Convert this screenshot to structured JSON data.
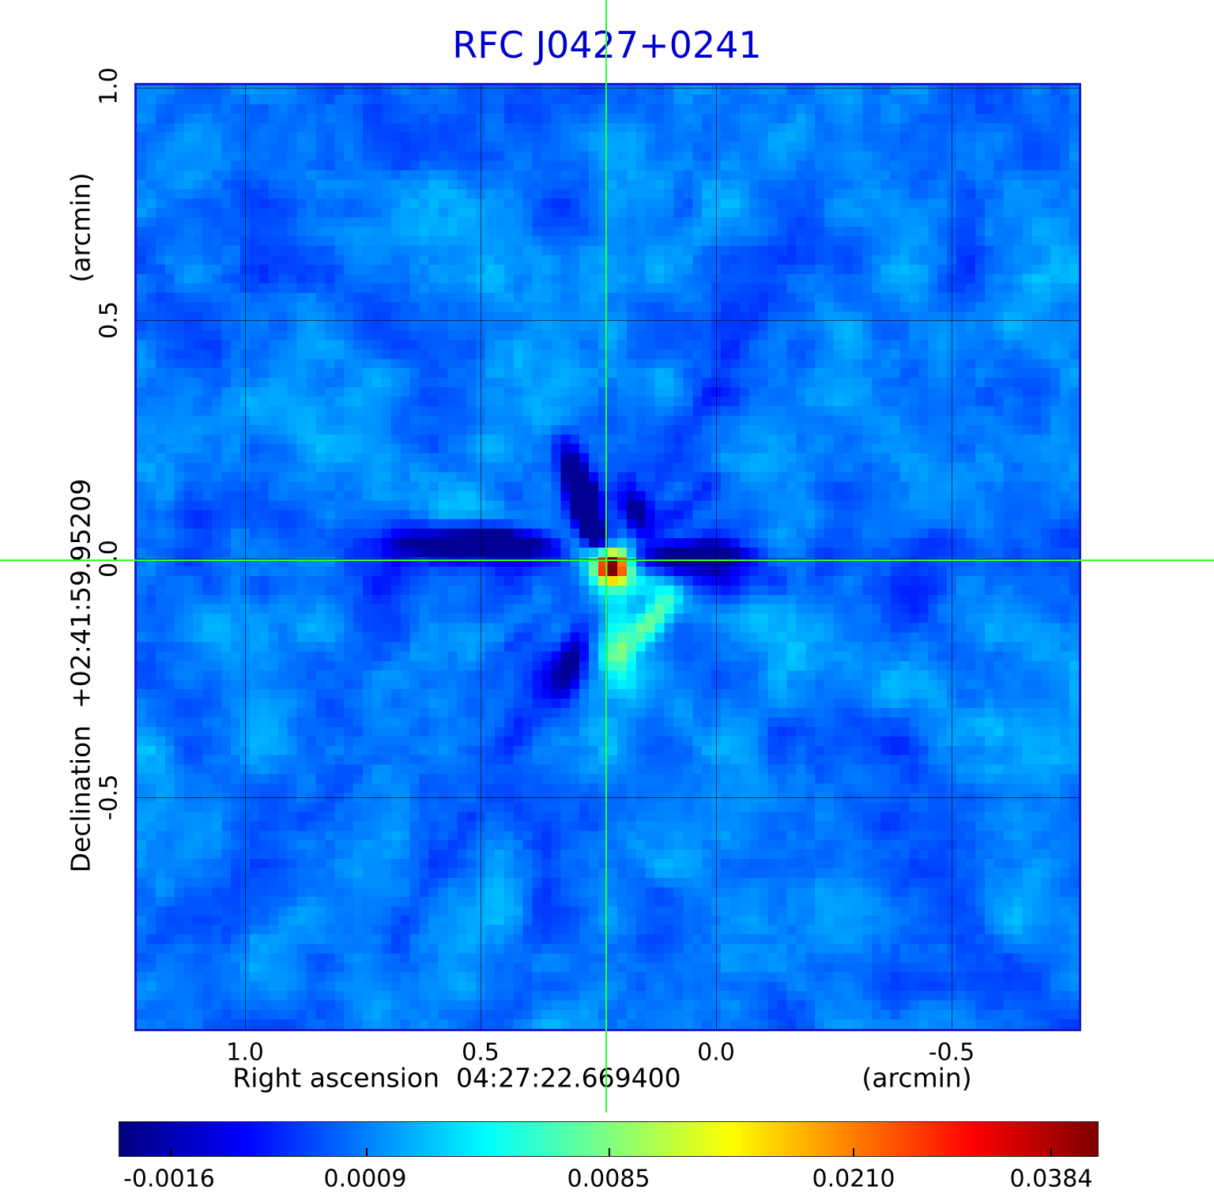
{
  "title": {
    "text": "RFC J0427+0241"
  },
  "colors": {
    "title": "#0000cd",
    "crosshair": "#2dff2d",
    "grid": "#000000",
    "frame": "#1a1acc"
  },
  "axes": {
    "y": {
      "label": "Declination  +02:41:59.95209",
      "unit": "(arcmin)",
      "ticks": [
        "1.0",
        "0.5",
        "0.0",
        "-0.5"
      ]
    },
    "x": {
      "label": "Right ascension  04:27:22.669400",
      "unit": "(arcmin)",
      "ticks": [
        "1.0",
        "0.5",
        "0.0",
        "-0.5"
      ]
    }
  },
  "colorbar": {
    "ticks": [
      "-0.0016",
      "0.0009",
      "0.0085",
      "0.0210",
      "0.0384"
    ],
    "colormap": "jet"
  },
  "chart_data": {
    "type": "heatmap",
    "title": "RFC J0427+0241",
    "xlabel": "Right ascension 04:27:22.669400 (arcmin)",
    "ylabel": "Declination +02:41:59.95209 (arcmin)",
    "x_ticks_arcmin": [
      1.0,
      0.5,
      0.0,
      -0.5
    ],
    "y_ticks_arcmin": [
      1.0,
      0.5,
      0.0,
      -0.5
    ],
    "x_range_arcmin": [
      1.23,
      -0.78
    ],
    "y_range_arcmin": [
      -1.02,
      1.01
    ],
    "grid_spacing_arcmin": 0.5,
    "colormap": "jet",
    "intensity_scale": "nonlinear",
    "colorbar_tick_values": [
      -0.0016,
      0.0009,
      0.0085,
      0.021,
      0.0384
    ],
    "value_range": [
      -0.0016,
      0.0384
    ],
    "source": {
      "name": "RFC J0427+0241",
      "ra": "04:27:22.669400",
      "dec": "+02:41:59.95209"
    },
    "peak": {
      "value": 0.0384,
      "x_offset_arcmin": 0.23,
      "y_offset_arcmin": 0.0
    },
    "description": "VLBI radio continuum dirty map: compact bright source at the green crosshair over a blue noise background with radial sidelobe streaks"
  }
}
